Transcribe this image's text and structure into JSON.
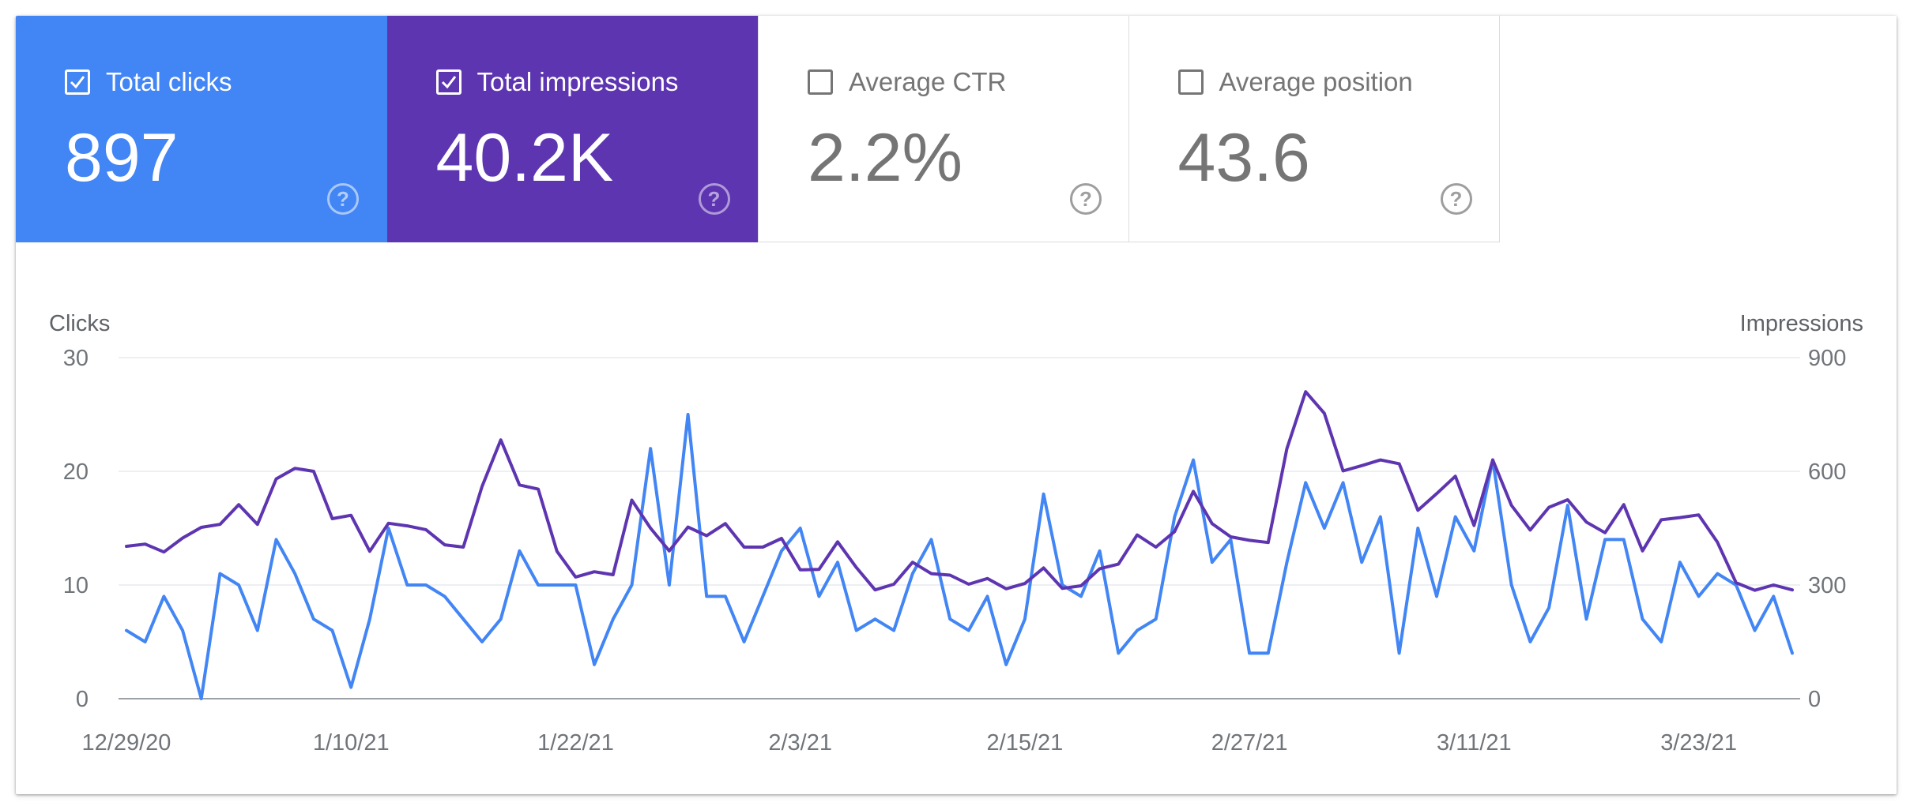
{
  "metrics": {
    "clicks": {
      "label": "Total clicks",
      "value": "897",
      "checked": true,
      "help_icon": "help-icon"
    },
    "impressions": {
      "label": "Total impressions",
      "value": "40.2K",
      "checked": true,
      "help_icon": "help-icon"
    },
    "ctr": {
      "label": "Average CTR",
      "value": "2.2%",
      "checked": false,
      "help_icon": "help-icon"
    },
    "position": {
      "label": "Average position",
      "value": "43.6",
      "checked": false,
      "help_icon": "help-icon"
    }
  },
  "colors": {
    "clicks": "#4285f4",
    "impressions": "#5e35b1",
    "grid": "#e8eaed",
    "baseline": "#9aa0a6"
  },
  "chart_data": {
    "type": "line",
    "y_left_title": "Clicks",
    "y_right_title": "Impressions",
    "y_left_ticks": [
      "0",
      "10",
      "20",
      "30"
    ],
    "y_right_ticks": [
      "0",
      "300",
      "600",
      "900"
    ],
    "y_left_range": [
      0,
      30
    ],
    "y_right_range": [
      0,
      900
    ],
    "grid": true,
    "x_start": "12/29/20",
    "x_end": "3/28/21",
    "x_ticks": [
      "12/29/20",
      "1/10/21",
      "1/22/21",
      "2/3/21",
      "2/15/21",
      "2/27/21",
      "3/11/21",
      "3/23/21"
    ],
    "series": [
      {
        "name": "Total clicks",
        "axis": "left",
        "color": "#4285f4",
        "values": [
          6,
          5,
          9,
          6,
          0,
          11,
          10,
          6,
          14,
          11,
          7,
          6,
          1,
          7,
          15,
          10,
          10,
          9,
          7,
          5,
          7,
          13,
          10,
          10,
          10,
          3,
          7,
          10,
          22,
          10,
          25,
          9,
          9,
          5,
          9,
          13,
          15,
          9,
          12,
          6,
          7,
          6,
          11,
          14,
          7,
          6,
          9,
          3,
          7,
          18,
          10,
          9,
          13,
          4,
          6,
          7,
          16,
          21,
          12,
          14,
          4,
          4,
          12,
          19,
          15,
          19,
          12,
          16,
          4,
          15,
          9,
          16,
          13,
          21,
          10,
          5,
          8,
          17,
          7,
          14,
          14,
          7,
          5,
          12,
          9,
          11,
          10,
          6,
          9,
          4
        ]
      },
      {
        "name": "Total impressions",
        "axis": "right",
        "color": "#5e35b1",
        "values": [
          402,
          408,
          387,
          424,
          452,
          460,
          512,
          460,
          580,
          608,
          600,
          475,
          484,
          389,
          463,
          456,
          446,
          406,
          400,
          560,
          683,
          564,
          553,
          389,
          321,
          335,
          327,
          524,
          450,
          390,
          453,
          430,
          462,
          400,
          400,
          423,
          340,
          341,
          414,
          346,
          287,
          302,
          360,
          330,
          326,
          302,
          317,
          290,
          304,
          345,
          291,
          298,
          343,
          355,
          432,
          400,
          441,
          547,
          462,
          427,
          418,
          412,
          660,
          810,
          753,
          601,
          615,
          630,
          620,
          497,
          541,
          587,
          457,
          630,
          510,
          445,
          505,
          525,
          466,
          438,
          512,
          390,
          472,
          478,
          485,
          413,
          306,
          286,
          300,
          287
        ]
      }
    ]
  }
}
